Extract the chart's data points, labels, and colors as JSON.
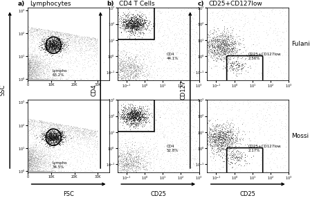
{
  "fig_width": 4.74,
  "fig_height": 2.86,
  "background_color": "#ffffff",
  "panel_labels": [
    "a)",
    "b)",
    "c)"
  ],
  "panel_titles": [
    "Lymphocytes",
    "CD4 T Cells",
    "CD25+CD127low"
  ],
  "row_labels": [
    "Fulani",
    "Mossi"
  ],
  "annotations": [
    [
      "Lympho\n63.2%",
      "Lympho\n34.5%"
    ],
    [
      "CD4\n44.1%",
      "CD4\n52.8%"
    ],
    [
      "CD25+CD127low\n2.56%",
      "CD25+CD127low\n2.17%"
    ]
  ],
  "gate_color": "#000000",
  "gate_linewidth": 1.2,
  "text_fontsize": 4.0,
  "title_fontsize": 6.5,
  "label_fontsize": 6.5,
  "axis_label_fontsize": 6.0,
  "row_label_fontsize": 6.5,
  "tick_fontsize": 3.5
}
